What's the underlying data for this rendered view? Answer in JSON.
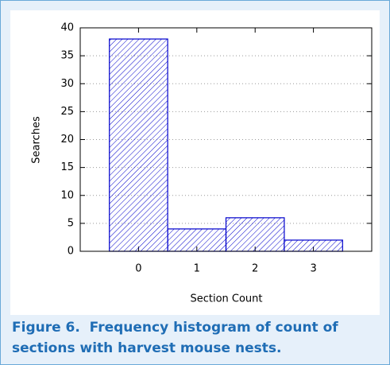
{
  "chart_data": {
    "type": "bar",
    "categories": [
      "0",
      "1",
      "2",
      "3"
    ],
    "values": [
      38,
      4,
      6,
      2
    ],
    "color": "#0000cc",
    "x_label": "Section Count",
    "y_label": "Searches",
    "ylim": [
      0,
      40
    ],
    "yticks": [
      0,
      5,
      10,
      15,
      20,
      25,
      30,
      35,
      40
    ],
    "grid": true
  },
  "caption": "Figure 6.  Frequency histogram of count of sections with harvest mouse nests."
}
